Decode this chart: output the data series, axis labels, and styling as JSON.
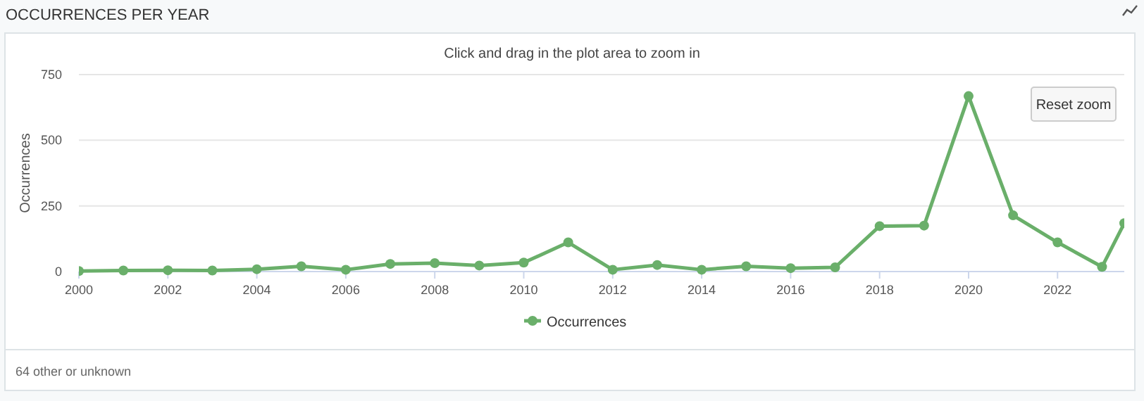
{
  "chart_data": {
    "type": "line",
    "title": "OCCURRENCES PER YEAR",
    "subtitle": "Click and drag in the plot area to zoom in",
    "ylabel": "Occurrences",
    "x": [
      2000,
      2001,
      2002,
      2003,
      2004,
      2005,
      2006,
      2007,
      2008,
      2009,
      2010,
      2011,
      2012,
      2013,
      2014,
      2015,
      2016,
      2017,
      2018,
      2019,
      2020,
      2021,
      2022,
      2023,
      2023.5
    ],
    "series": [
      {
        "name": "Occurrences",
        "color": "#6aaf6a",
        "values": [
          2,
          4,
          5,
          4,
          9,
          20,
          7,
          29,
          32,
          23,
          34,
          111,
          7,
          25,
          7,
          20,
          13,
          16,
          173,
          175,
          668,
          214,
          111,
          18,
          184
        ]
      }
    ],
    "xlim": [
      2000,
      2023.5
    ],
    "xticks": [
      2000,
      2002,
      2004,
      2006,
      2008,
      2010,
      2012,
      2014,
      2016,
      2018,
      2020,
      2022
    ],
    "ylim": [
      0,
      750
    ],
    "yticks": [
      0,
      250,
      500,
      750
    ],
    "grid": "y",
    "legend": "bottom",
    "marker": "circle",
    "line_style": "solid",
    "annotations": [
      "Reset zoom",
      "64 other or unknown"
    ]
  }
}
